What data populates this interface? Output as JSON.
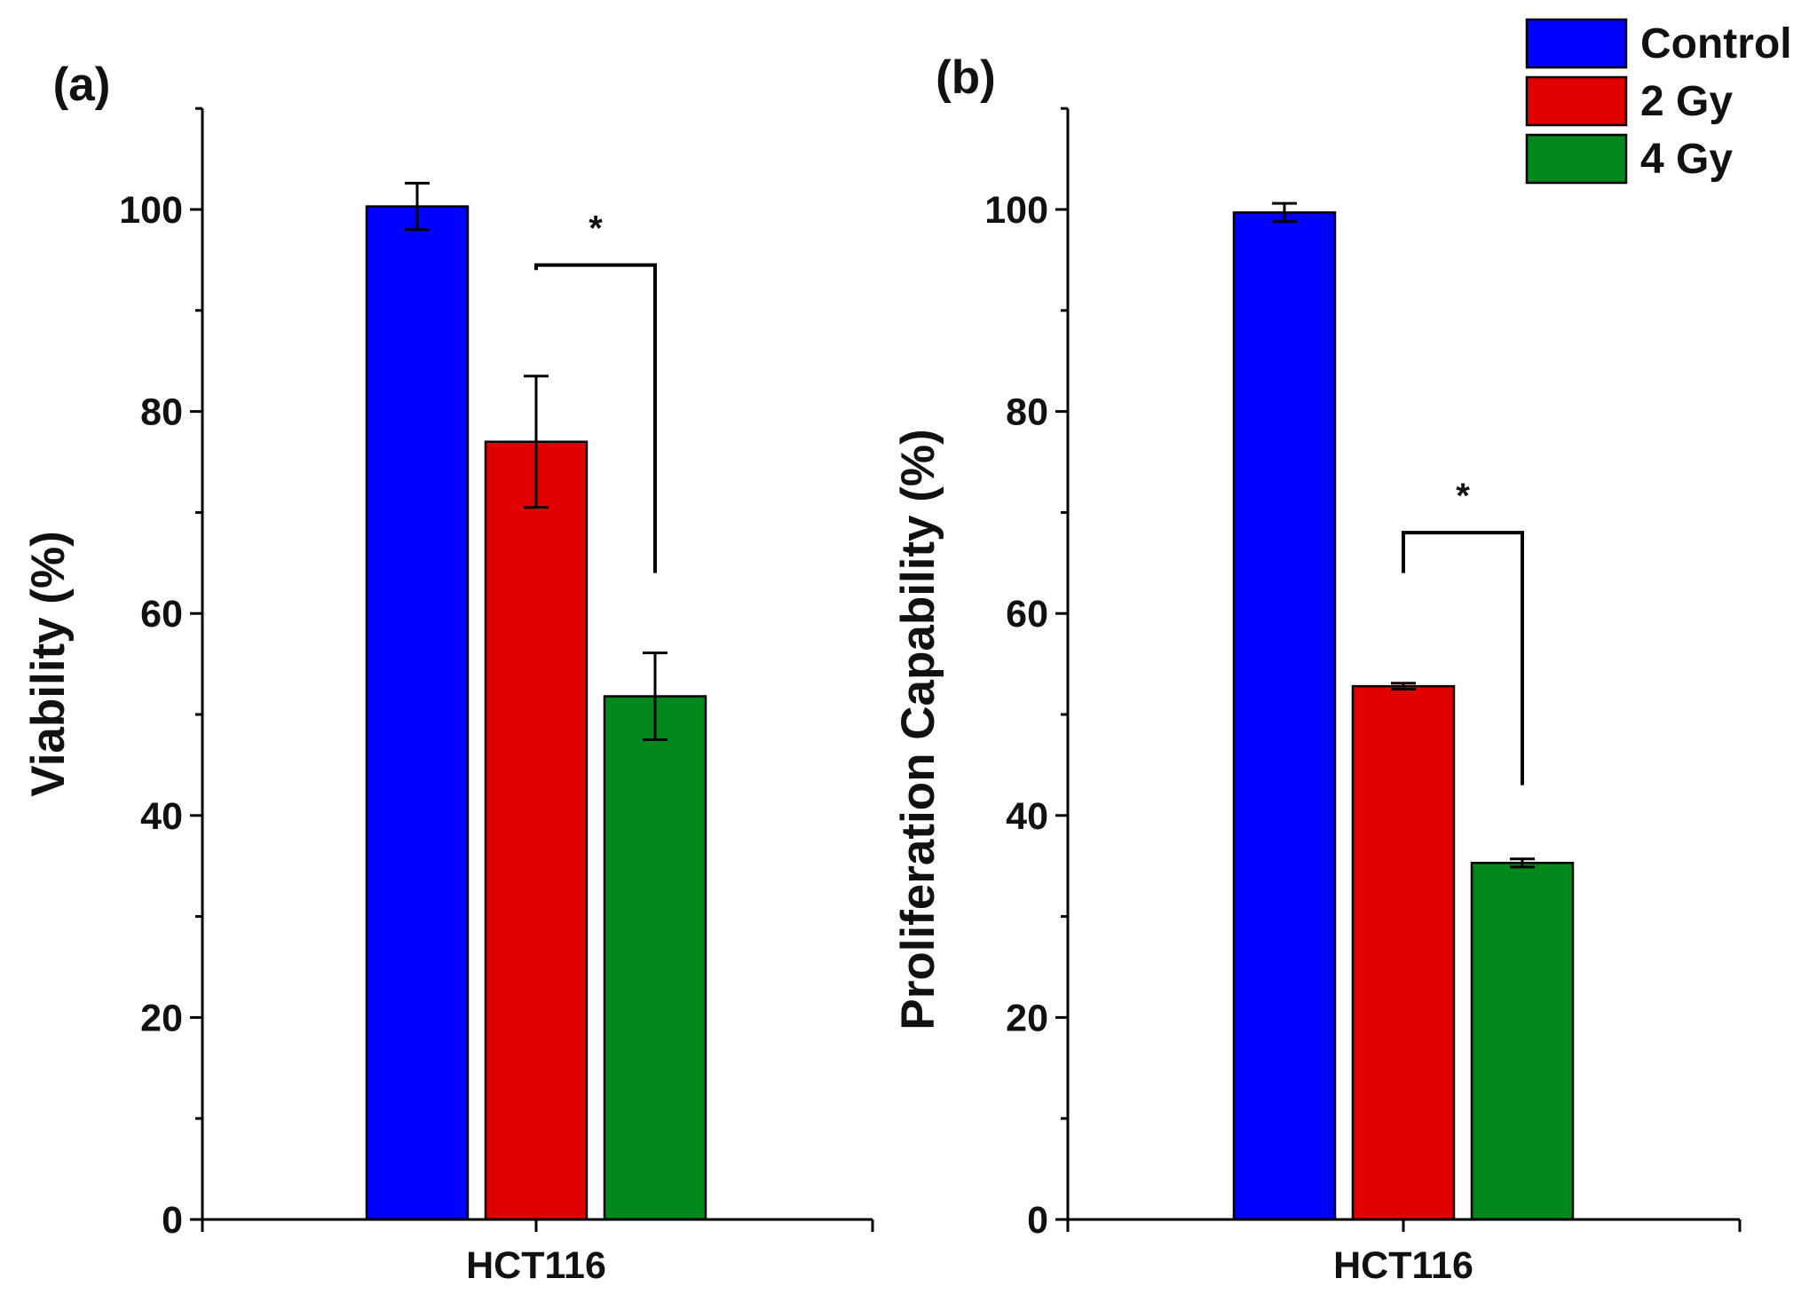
{
  "legend": [
    {
      "name": "Control",
      "color": "#0000ff"
    },
    {
      "name": "2 Gy",
      "color": "#e00000"
    },
    {
      "name": "4 Gy",
      "color": "#00891a"
    }
  ],
  "chart_data": [
    {
      "type": "bar",
      "panel_label": "(a)",
      "categories": [
        "HCT116"
      ],
      "series": [
        {
          "name": "Control",
          "values": [
            100.3
          ],
          "errors": [
            2.3
          ]
        },
        {
          "name": "2 Gy",
          "values": [
            77.0
          ],
          "errors": [
            6.5
          ]
        },
        {
          "name": "4 Gy",
          "values": [
            51.8
          ],
          "errors": [
            4.3
          ]
        }
      ],
      "xlabel": "",
      "ylabel": "Viability (%)",
      "ylim": [
        0,
        110
      ],
      "yticks": [
        "0",
        "20",
        "40",
        "60",
        "80",
        "100"
      ],
      "significance": {
        "between": [
          "2 Gy",
          "4 Gy"
        ],
        "label": "*",
        "left_base": 94,
        "right_base": 64,
        "top": 94.5
      }
    },
    {
      "type": "bar",
      "panel_label": "(b)",
      "categories": [
        "HCT116"
      ],
      "series": [
        {
          "name": "Control",
          "values": [
            99.7
          ],
          "errors": [
            0.9
          ]
        },
        {
          "name": "2 Gy",
          "values": [
            52.8
          ],
          "errors": [
            0.3
          ]
        },
        {
          "name": "4 Gy",
          "values": [
            35.3
          ],
          "errors": [
            0.4
          ]
        }
      ],
      "xlabel": "",
      "ylabel": "Proliferation Capability (%)",
      "ylim": [
        0,
        110
      ],
      "yticks": [
        "0",
        "20",
        "40",
        "60",
        "80",
        "100"
      ],
      "significance": {
        "between": [
          "2 Gy",
          "4 Gy"
        ],
        "label": "*",
        "left_base": 64,
        "right_base": 43,
        "top": 68
      }
    }
  ]
}
